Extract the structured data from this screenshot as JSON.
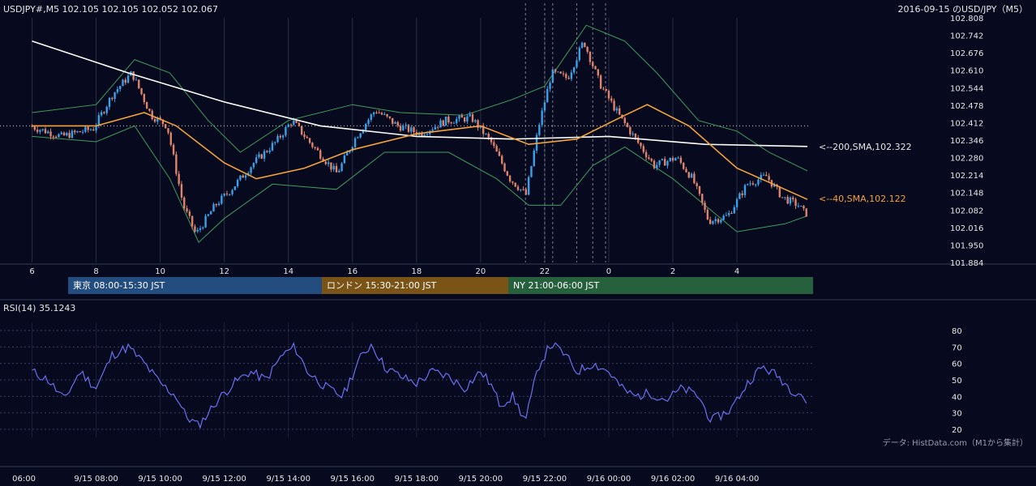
{
  "header": {
    "symbol_info": "USDJPY#,M5 102.105 102.105 102.052 102.067",
    "date_title": "2016-09-15 のUSD/JPY（M5）"
  },
  "rsi_panel": {
    "title": "RSI(14) 35.1243"
  },
  "source_note": "データ: HistData.com（M1から集計）",
  "sessions": {
    "tokyo": "東京 08:00-15:30 JST",
    "london": "ロンドン 15:30-21:00 JST",
    "ny": "NY 21:00-06:00 JST"
  },
  "indicators": {
    "sma200_label": "<--200,SMA,102.322",
    "sma40_label": "<--40,SMA,102.122"
  },
  "colors": {
    "background": "#070a1e",
    "bull": "#3aa0e8",
    "bear": "#e0836b",
    "sma200": "#ffffff",
    "sma40": "#f5a23a",
    "bollinger": "#3f9e5c",
    "rsi": "#6a6ff0"
  },
  "chart_data": [
    {
      "type": "candlestick",
      "name": "price",
      "ylim": [
        101.884,
        102.808
      ],
      "y_ticks": [
        "102.808",
        "102.742",
        "102.676",
        "102.610",
        "102.544",
        "102.478",
        "102.412",
        "102.346",
        "102.280",
        "102.214",
        "102.148",
        "102.082",
        "102.016",
        "101.950",
        "101.884"
      ],
      "x_ticks": [
        "6",
        "8",
        "10",
        "12",
        "14",
        "16",
        "18",
        "20",
        "22",
        "0",
        "2",
        "4"
      ],
      "reference_level": 102.4,
      "key_points": [
        {
          "t": 6.0,
          "price": 102.4
        },
        {
          "t": 7.0,
          "price": 102.36
        },
        {
          "t": 8.0,
          "price": 102.39
        },
        {
          "t": 8.6,
          "price": 102.52
        },
        {
          "t": 9.2,
          "price": 102.6
        },
        {
          "t": 9.8,
          "price": 102.44
        },
        {
          "t": 10.3,
          "price": 102.4
        },
        {
          "t": 10.8,
          "price": 102.1
        },
        {
          "t": 11.2,
          "price": 101.99
        },
        {
          "t": 11.8,
          "price": 102.1
        },
        {
          "t": 12.3,
          "price": 102.16
        },
        {
          "t": 13.0,
          "price": 102.26
        },
        {
          "t": 13.7,
          "price": 102.34
        },
        {
          "t": 14.2,
          "price": 102.42
        },
        {
          "t": 14.8,
          "price": 102.33
        },
        {
          "t": 15.6,
          "price": 102.22
        },
        {
          "t": 16.2,
          "price": 102.36
        },
        {
          "t": 16.8,
          "price": 102.46
        },
        {
          "t": 17.5,
          "price": 102.4
        },
        {
          "t": 18.2,
          "price": 102.37
        },
        {
          "t": 19.0,
          "price": 102.42
        },
        {
          "t": 19.8,
          "price": 102.43
        },
        {
          "t": 20.4,
          "price": 102.34
        },
        {
          "t": 21.0,
          "price": 102.2
        },
        {
          "t": 21.5,
          "price": 102.14
        },
        {
          "t": 21.9,
          "price": 102.4
        },
        {
          "t": 22.3,
          "price": 102.6
        },
        {
          "t": 22.8,
          "price": 102.58
        },
        {
          "t": 23.3,
          "price": 102.72
        },
        {
          "t": 23.8,
          "price": 102.56
        },
        {
          "t": 24.4,
          "price": 102.44
        },
        {
          "t": 24.8,
          "price": 102.37
        },
        {
          "t": 25.5,
          "price": 102.25
        },
        {
          "t": 26.2,
          "price": 102.28
        },
        {
          "t": 26.7,
          "price": 102.2
        },
        {
          "t": 27.2,
          "price": 102.04
        },
        {
          "t": 27.8,
          "price": 102.06
        },
        {
          "t": 28.4,
          "price": 102.18
        },
        {
          "t": 29.0,
          "price": 102.21
        },
        {
          "t": 29.5,
          "price": 102.13
        },
        {
          "t": 30.0,
          "price": 102.1
        },
        {
          "t": 30.2,
          "price": 102.07
        }
      ],
      "series": [
        {
          "name": "200,SMA",
          "last": 102.322,
          "points": [
            [
              6.0,
              102.72
            ],
            [
              9.0,
              102.6
            ],
            [
              12.0,
              102.49
            ],
            [
              15.0,
              102.4
            ],
            [
              18.0,
              102.36
            ],
            [
              21.0,
              102.35
            ],
            [
              24.0,
              102.36
            ],
            [
              27.0,
              102.33
            ],
            [
              30.2,
              102.322
            ]
          ]
        },
        {
          "name": "40,SMA",
          "last": 102.122,
          "points": [
            [
              6.0,
              102.4
            ],
            [
              8.0,
              102.4
            ],
            [
              9.5,
              102.45
            ],
            [
              10.5,
              102.4
            ],
            [
              12.0,
              102.26
            ],
            [
              13.0,
              102.2
            ],
            [
              14.5,
              102.24
            ],
            [
              16.0,
              102.31
            ],
            [
              18.0,
              102.37
            ],
            [
              20.0,
              102.4
            ],
            [
              21.5,
              102.33
            ],
            [
              23.0,
              102.35
            ],
            [
              24.5,
              102.44
            ],
            [
              25.2,
              102.48
            ],
            [
              26.5,
              102.4
            ],
            [
              28.0,
              102.24
            ],
            [
              29.5,
              102.16
            ],
            [
              30.2,
              102.122
            ]
          ]
        },
        {
          "name": "bollinger_upper",
          "points": [
            [
              6.0,
              102.45
            ],
            [
              8.0,
              102.48
            ],
            [
              9.2,
              102.65
            ],
            [
              10.3,
              102.6
            ],
            [
              11.5,
              102.42
            ],
            [
              12.5,
              102.3
            ],
            [
              14.0,
              102.42
            ],
            [
              16.0,
              102.48
            ],
            [
              17.5,
              102.45
            ],
            [
              19.5,
              102.44
            ],
            [
              21.0,
              102.5
            ],
            [
              22.0,
              102.55
            ],
            [
              23.3,
              102.78
            ],
            [
              24.5,
              102.72
            ],
            [
              25.5,
              102.6
            ],
            [
              26.8,
              102.42
            ],
            [
              28.0,
              102.38
            ],
            [
              29.0,
              102.3
            ],
            [
              30.2,
              102.23
            ]
          ]
        },
        {
          "name": "bollinger_lower",
          "points": [
            [
              6.0,
              102.36
            ],
            [
              8.0,
              102.34
            ],
            [
              9.2,
              102.4
            ],
            [
              10.3,
              102.2
            ],
            [
              11.2,
              101.96
            ],
            [
              12.0,
              102.05
            ],
            [
              13.5,
              102.18
            ],
            [
              15.5,
              102.16
            ],
            [
              17.0,
              102.3
            ],
            [
              19.0,
              102.3
            ],
            [
              20.5,
              102.2
            ],
            [
              21.5,
              102.1
            ],
            [
              22.5,
              102.1
            ],
            [
              23.5,
              102.25
            ],
            [
              24.5,
              102.32
            ],
            [
              26.0,
              102.2
            ],
            [
              27.0,
              102.1
            ],
            [
              28.0,
              102.0
            ],
            [
              29.5,
              102.03
            ],
            [
              30.2,
              102.06
            ]
          ]
        }
      ]
    },
    {
      "type": "line",
      "name": "RSI(14)",
      "ylim": [
        15,
        85
      ],
      "y_ticks": [
        "80",
        "70",
        "60",
        "50",
        "40",
        "30",
        "20"
      ],
      "x_ticks": [
        "06:00",
        "9/15 08:00",
        "9/15 10:00",
        "9/15 12:00",
        "9/15 14:00",
        "9/15 16:00",
        "9/15 18:00",
        "9/15 20:00",
        "9/15 22:00",
        "9/16 00:00",
        "9/16 02:00",
        "9/16 04:00"
      ],
      "points": [
        [
          6.0,
          55
        ],
        [
          6.5,
          50
        ],
        [
          7.0,
          38
        ],
        [
          7.5,
          55
        ],
        [
          8.0,
          45
        ],
        [
          8.5,
          65
        ],
        [
          9.0,
          70
        ],
        [
          9.5,
          60
        ],
        [
          10.0,
          48
        ],
        [
          10.5,
          40
        ],
        [
          10.8,
          28
        ],
        [
          11.2,
          22
        ],
        [
          11.8,
          38
        ],
        [
          12.3,
          48
        ],
        [
          12.8,
          55
        ],
        [
          13.3,
          50
        ],
        [
          13.8,
          65
        ],
        [
          14.2,
          70
        ],
        [
          14.6,
          55
        ],
        [
          15.2,
          45
        ],
        [
          15.7,
          40
        ],
        [
          16.2,
          62
        ],
        [
          16.6,
          72
        ],
        [
          17.0,
          58
        ],
        [
          17.5,
          52
        ],
        [
          18.0,
          48
        ],
        [
          18.5,
          55
        ],
        [
          19.0,
          52
        ],
        [
          19.5,
          45
        ],
        [
          20.0,
          55
        ],
        [
          20.3,
          48
        ],
        [
          20.6,
          35
        ],
        [
          21.0,
          40
        ],
        [
          21.4,
          25
        ],
        [
          21.8,
          58
        ],
        [
          22.2,
          72
        ],
        [
          22.6,
          66
        ],
        [
          23.0,
          55
        ],
        [
          23.5,
          60
        ],
        [
          24.0,
          55
        ],
        [
          24.4,
          45
        ],
        [
          24.8,
          40
        ],
        [
          25.3,
          42
        ],
        [
          25.8,
          38
        ],
        [
          26.3,
          45
        ],
        [
          26.8,
          40
        ],
        [
          27.2,
          25
        ],
        [
          27.8,
          32
        ],
        [
          28.4,
          50
        ],
        [
          28.8,
          58
        ],
        [
          29.3,
          52
        ],
        [
          29.7,
          44
        ],
        [
          30.0,
          42
        ],
        [
          30.2,
          35.1243
        ]
      ]
    }
  ]
}
